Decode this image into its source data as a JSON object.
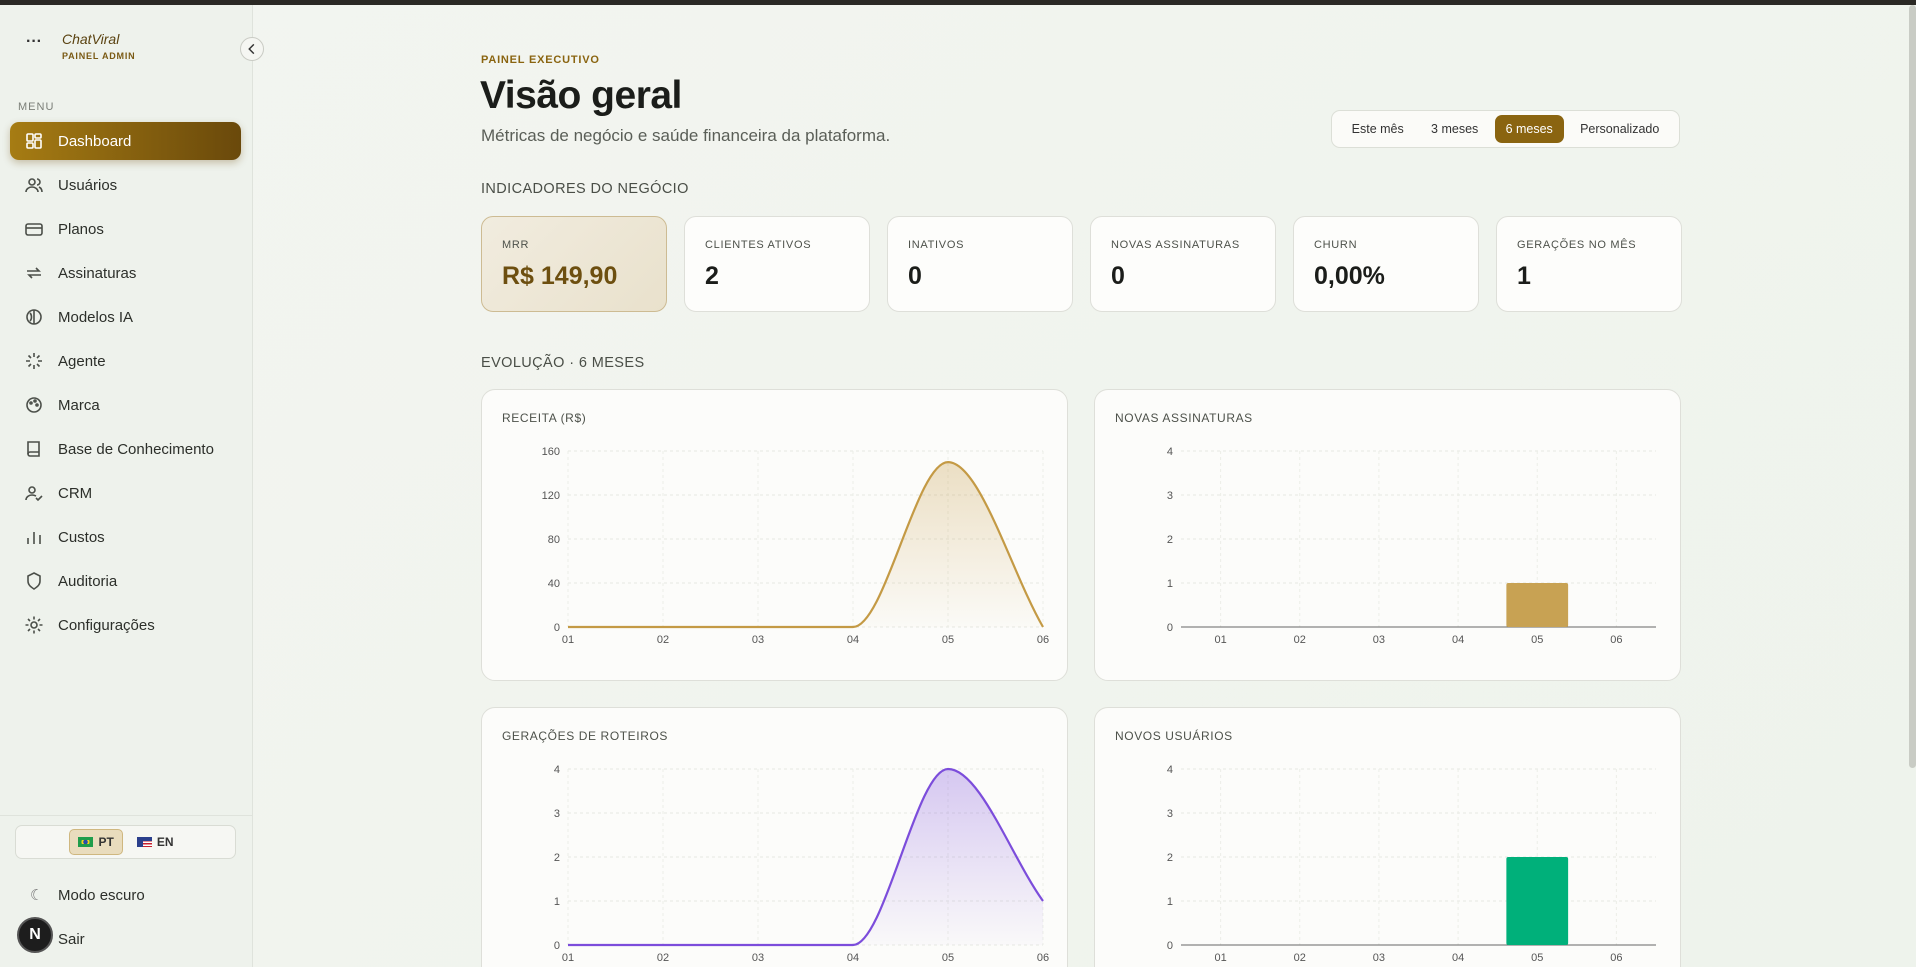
{
  "sidebar": {
    "brand": "ChatViral",
    "subtitle": "PAINEL ADMIN",
    "menu_label": "MENU",
    "items": [
      "Dashboard",
      "Usuários",
      "Planos",
      "Assinaturas",
      "Modelos IA",
      "Agente",
      "Marca",
      "Base de Conhecimento",
      "CRM",
      "Custos",
      "Auditoria",
      "Configurações"
    ],
    "active_item": 0,
    "languages": [
      "PT",
      "EN"
    ],
    "active_language": 0,
    "dark_mode": "Modo escuro",
    "logout": "Sair",
    "avatar": "N"
  },
  "header": {
    "eyebrow": "PAINEL EXECUTIVO",
    "title": "Visão geral",
    "subtitle": "Métricas de negócio e saúde financeira da plataforma.",
    "periods": [
      "Este mês",
      "3 meses",
      "6 meses",
      "Personalizado"
    ],
    "active_period": 2
  },
  "kpis": {
    "title": "INDICADORES DO NEGÓCIO",
    "cards": [
      {
        "label": "MRR",
        "value": "R$ 149,90"
      },
      {
        "label": "CLIENTES ATIVOS",
        "value": "2"
      },
      {
        "label": "INATIVOS",
        "value": "0"
      },
      {
        "label": "NOVAS ASSINATURAS",
        "value": "0"
      },
      {
        "label": "CHURN",
        "value": "0,00%"
      },
      {
        "label": "GERAÇÕES NO MÊS",
        "value": "1"
      }
    ]
  },
  "evolution_title": "EVOLUÇÃO · 6 MESES",
  "chart_data": [
    {
      "type": "line",
      "title": "RECEITA (R$)",
      "categories": [
        "01",
        "02",
        "03",
        "04",
        "05",
        "06"
      ],
      "values": [
        0,
        0,
        0,
        0,
        149.9,
        0
      ],
      "color": "#c49a45",
      "ylim": [
        0,
        160
      ],
      "yticks": [
        0,
        40,
        80,
        120,
        160
      ],
      "grid": true
    },
    {
      "type": "bar",
      "title": "NOVAS ASSINATURAS",
      "categories": [
        "01",
        "02",
        "03",
        "04",
        "05",
        "06"
      ],
      "values": [
        0,
        0,
        0,
        0,
        1,
        0
      ],
      "color": "#c8a253",
      "ylim": [
        0,
        4
      ],
      "yticks": [
        0,
        1,
        2,
        3,
        4
      ],
      "grid": true
    },
    {
      "type": "line",
      "title": "GERAÇÕES DE ROTEIROS",
      "categories": [
        "01",
        "02",
        "03",
        "04",
        "05",
        "06"
      ],
      "values": [
        0,
        0,
        0,
        0,
        4,
        1
      ],
      "color": "#7c4ddb",
      "ylim": [
        0,
        4
      ],
      "yticks": [
        0,
        1,
        2,
        3,
        4
      ],
      "grid": true
    },
    {
      "type": "bar",
      "title": "NOVOS USUÁRIOS",
      "categories": [
        "01",
        "02",
        "03",
        "04",
        "05",
        "06"
      ],
      "values": [
        0,
        0,
        0,
        0,
        2,
        0
      ],
      "color": "#00b07a",
      "ylim": [
        0,
        4
      ],
      "yticks": [
        0,
        1,
        2,
        3,
        4
      ],
      "grid": true
    }
  ]
}
